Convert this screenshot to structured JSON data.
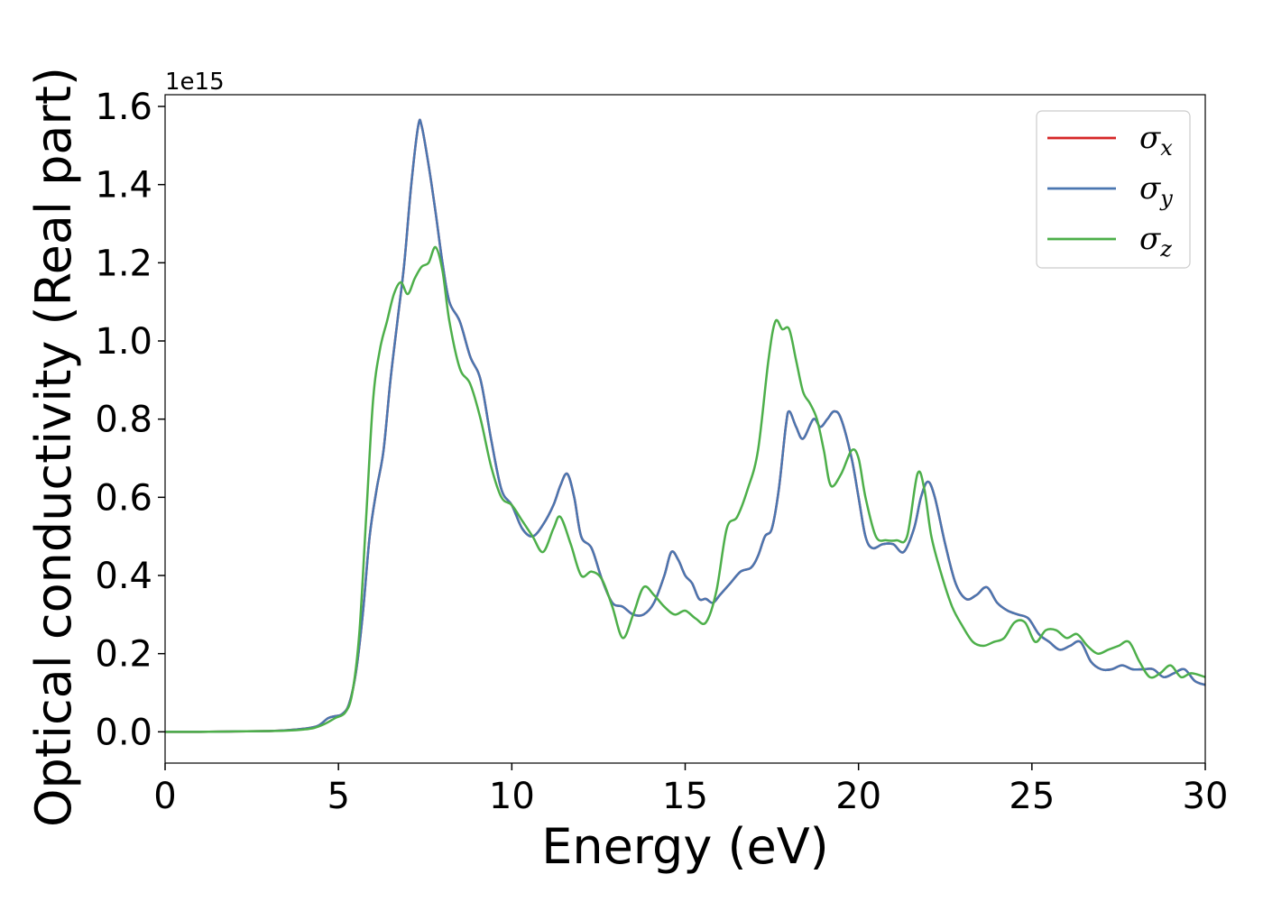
{
  "chart_data": {
    "type": "line",
    "title": "",
    "xlabel": "Energy (eV)",
    "ylabel": "Optical conductivity (Real part)",
    "y_offset_label": "1e15",
    "xlim": [
      0,
      30
    ],
    "ylim": [
      -0.08,
      1.63
    ],
    "x_ticks": [
      0,
      5,
      10,
      15,
      20,
      25,
      30
    ],
    "x_tick_labels": [
      "0",
      "5",
      "10",
      "15",
      "20",
      "25",
      "30"
    ],
    "y_ticks": [
      0.0,
      0.2,
      0.4,
      0.6,
      0.8,
      1.0,
      1.2,
      1.4,
      1.6
    ],
    "y_tick_labels": [
      "0.0",
      "0.2",
      "0.4",
      "0.6",
      "0.8",
      "1.0",
      "1.2",
      "1.4",
      "1.6"
    ],
    "grid": false,
    "legend_position": "top-right",
    "series": [
      {
        "name": "σx",
        "symbol": "σ",
        "subscript": "x",
        "color": "#d62728",
        "x": [
          0,
          1,
          2,
          3,
          3.5,
          4,
          4.4,
          4.7,
          4.9,
          5.1,
          5.3,
          5.5,
          5.7,
          5.9,
          6.1,
          6.3,
          6.5,
          6.7,
          6.9,
          7.1,
          7.3,
          7.4,
          7.6,
          7.8,
          8.0,
          8.2,
          8.5,
          8.8,
          9.1,
          9.4,
          9.7,
          10.0,
          10.3,
          10.6,
          10.9,
          11.2,
          11.4,
          11.6,
          11.8,
          12.0,
          12.3,
          12.6,
          12.9,
          13.2,
          13.5,
          13.8,
          14.1,
          14.4,
          14.6,
          14.8,
          15.0,
          15.2,
          15.4,
          15.6,
          15.8,
          16.0,
          16.3,
          16.6,
          16.9,
          17.1,
          17.3,
          17.5,
          17.7,
          17.9,
          18.0,
          18.2,
          18.4,
          18.7,
          18.9,
          19.1,
          19.3,
          19.5,
          19.8,
          20.0,
          20.2,
          20.4,
          20.7,
          21.0,
          21.3,
          21.6,
          21.8,
          22.0,
          22.2,
          22.5,
          22.8,
          23.1,
          23.4,
          23.7,
          24.0,
          24.3,
          24.6,
          24.9,
          25.2,
          25.5,
          25.8,
          26.1,
          26.4,
          26.7,
          27.0,
          27.3,
          27.6,
          27.9,
          28.2,
          28.5,
          28.8,
          29.1,
          29.4,
          29.7,
          30.0
        ],
        "y": [
          0,
          0,
          0.001,
          0.002,
          0.004,
          0.008,
          0.015,
          0.035,
          0.04,
          0.045,
          0.07,
          0.15,
          0.3,
          0.5,
          0.62,
          0.72,
          0.9,
          1.05,
          1.2,
          1.4,
          1.55,
          1.55,
          1.45,
          1.33,
          1.2,
          1.1,
          1.05,
          0.96,
          0.9,
          0.75,
          0.62,
          0.58,
          0.52,
          0.5,
          0.53,
          0.58,
          0.63,
          0.66,
          0.6,
          0.5,
          0.47,
          0.39,
          0.33,
          0.32,
          0.3,
          0.3,
          0.33,
          0.4,
          0.46,
          0.44,
          0.4,
          0.38,
          0.34,
          0.34,
          0.33,
          0.35,
          0.38,
          0.41,
          0.42,
          0.45,
          0.5,
          0.52,
          0.62,
          0.78,
          0.82,
          0.78,
          0.75,
          0.8,
          0.78,
          0.8,
          0.82,
          0.8,
          0.7,
          0.6,
          0.5,
          0.47,
          0.48,
          0.48,
          0.46,
          0.52,
          0.6,
          0.64,
          0.6,
          0.48,
          0.38,
          0.34,
          0.35,
          0.37,
          0.33,
          0.31,
          0.3,
          0.29,
          0.25,
          0.23,
          0.21,
          0.22,
          0.23,
          0.18,
          0.16,
          0.16,
          0.17,
          0.16,
          0.16,
          0.16,
          0.14,
          0.15,
          0.16,
          0.13,
          0.12
        ],
        "width": 2.5
      },
      {
        "name": "σy",
        "symbol": "σ",
        "subscript": "y",
        "color": "#4a76b0",
        "x": [
          0,
          1,
          2,
          3,
          3.5,
          4,
          4.4,
          4.7,
          4.9,
          5.1,
          5.3,
          5.5,
          5.7,
          5.9,
          6.1,
          6.3,
          6.5,
          6.7,
          6.9,
          7.1,
          7.3,
          7.4,
          7.6,
          7.8,
          8.0,
          8.2,
          8.5,
          8.8,
          9.1,
          9.4,
          9.7,
          10.0,
          10.3,
          10.6,
          10.9,
          11.2,
          11.4,
          11.6,
          11.8,
          12.0,
          12.3,
          12.6,
          12.9,
          13.2,
          13.5,
          13.8,
          14.1,
          14.4,
          14.6,
          14.8,
          15.0,
          15.2,
          15.4,
          15.6,
          15.8,
          16.0,
          16.3,
          16.6,
          16.9,
          17.1,
          17.3,
          17.5,
          17.7,
          17.9,
          18.0,
          18.2,
          18.4,
          18.7,
          18.9,
          19.1,
          19.3,
          19.5,
          19.8,
          20.0,
          20.2,
          20.4,
          20.7,
          21.0,
          21.3,
          21.6,
          21.8,
          22.0,
          22.2,
          22.5,
          22.8,
          23.1,
          23.4,
          23.7,
          24.0,
          24.3,
          24.6,
          24.9,
          25.2,
          25.5,
          25.8,
          26.1,
          26.4,
          26.7,
          27.0,
          27.3,
          27.6,
          27.9,
          28.2,
          28.5,
          28.8,
          29.1,
          29.4,
          29.7,
          30.0
        ],
        "y": [
          0,
          0,
          0.001,
          0.002,
          0.004,
          0.008,
          0.015,
          0.035,
          0.04,
          0.045,
          0.07,
          0.15,
          0.3,
          0.5,
          0.62,
          0.72,
          0.9,
          1.05,
          1.2,
          1.4,
          1.55,
          1.55,
          1.45,
          1.33,
          1.2,
          1.1,
          1.05,
          0.96,
          0.9,
          0.75,
          0.62,
          0.58,
          0.52,
          0.5,
          0.53,
          0.58,
          0.63,
          0.66,
          0.6,
          0.5,
          0.47,
          0.39,
          0.33,
          0.32,
          0.3,
          0.3,
          0.33,
          0.4,
          0.46,
          0.44,
          0.4,
          0.38,
          0.34,
          0.34,
          0.33,
          0.35,
          0.38,
          0.41,
          0.42,
          0.45,
          0.5,
          0.52,
          0.62,
          0.78,
          0.82,
          0.78,
          0.75,
          0.8,
          0.78,
          0.8,
          0.82,
          0.8,
          0.7,
          0.6,
          0.5,
          0.47,
          0.48,
          0.48,
          0.46,
          0.52,
          0.6,
          0.64,
          0.6,
          0.48,
          0.38,
          0.34,
          0.35,
          0.37,
          0.33,
          0.31,
          0.3,
          0.29,
          0.25,
          0.23,
          0.21,
          0.22,
          0.23,
          0.18,
          0.16,
          0.16,
          0.17,
          0.16,
          0.16,
          0.16,
          0.14,
          0.15,
          0.16,
          0.13,
          0.12
        ],
        "width": 2.5
      },
      {
        "name": "σz",
        "symbol": "σ",
        "subscript": "z",
        "color": "#4daf4a",
        "x": [
          0,
          1,
          2,
          3,
          3.5,
          4,
          4.3,
          4.6,
          4.9,
          5.2,
          5.4,
          5.6,
          5.8,
          6.0,
          6.2,
          6.4,
          6.6,
          6.8,
          7.0,
          7.2,
          7.4,
          7.6,
          7.8,
          8.0,
          8.2,
          8.5,
          8.8,
          9.1,
          9.4,
          9.7,
          10.0,
          10.3,
          10.6,
          10.9,
          11.2,
          11.4,
          11.7,
          12.0,
          12.3,
          12.6,
          12.9,
          13.2,
          13.5,
          13.8,
          14.1,
          14.4,
          14.7,
          15.0,
          15.3,
          15.6,
          15.9,
          16.2,
          16.5,
          16.8,
          17.1,
          17.4,
          17.6,
          17.8,
          18.0,
          18.2,
          18.4,
          18.6,
          18.8,
          19.0,
          19.2,
          19.5,
          19.8,
          20.0,
          20.2,
          20.5,
          20.8,
          21.1,
          21.4,
          21.7,
          21.9,
          22.1,
          22.4,
          22.7,
          23.0,
          23.3,
          23.6,
          23.9,
          24.2,
          24.5,
          24.8,
          25.1,
          25.4,
          25.7,
          26.0,
          26.3,
          26.6,
          26.9,
          27.2,
          27.5,
          27.8,
          28.1,
          28.4,
          28.7,
          29.0,
          29.3,
          29.6,
          30.0
        ],
        "y": [
          0,
          0,
          0.001,
          0.002,
          0.003,
          0.006,
          0.01,
          0.02,
          0.035,
          0.05,
          0.1,
          0.25,
          0.55,
          0.85,
          0.98,
          1.05,
          1.12,
          1.15,
          1.12,
          1.16,
          1.19,
          1.2,
          1.24,
          1.18,
          1.05,
          0.93,
          0.89,
          0.8,
          0.68,
          0.6,
          0.58,
          0.54,
          0.5,
          0.46,
          0.52,
          0.55,
          0.48,
          0.4,
          0.41,
          0.39,
          0.32,
          0.24,
          0.3,
          0.37,
          0.35,
          0.32,
          0.3,
          0.31,
          0.29,
          0.28,
          0.36,
          0.52,
          0.55,
          0.62,
          0.72,
          0.95,
          1.05,
          1.03,
          1.03,
          0.95,
          0.87,
          0.84,
          0.8,
          0.72,
          0.63,
          0.66,
          0.72,
          0.7,
          0.6,
          0.5,
          0.49,
          0.49,
          0.5,
          0.66,
          0.62,
          0.5,
          0.4,
          0.32,
          0.27,
          0.23,
          0.22,
          0.23,
          0.24,
          0.28,
          0.28,
          0.23,
          0.26,
          0.26,
          0.24,
          0.25,
          0.22,
          0.2,
          0.21,
          0.22,
          0.23,
          0.18,
          0.14,
          0.15,
          0.17,
          0.14,
          0.15,
          0.14
        ],
        "width": 2.5
      }
    ]
  }
}
